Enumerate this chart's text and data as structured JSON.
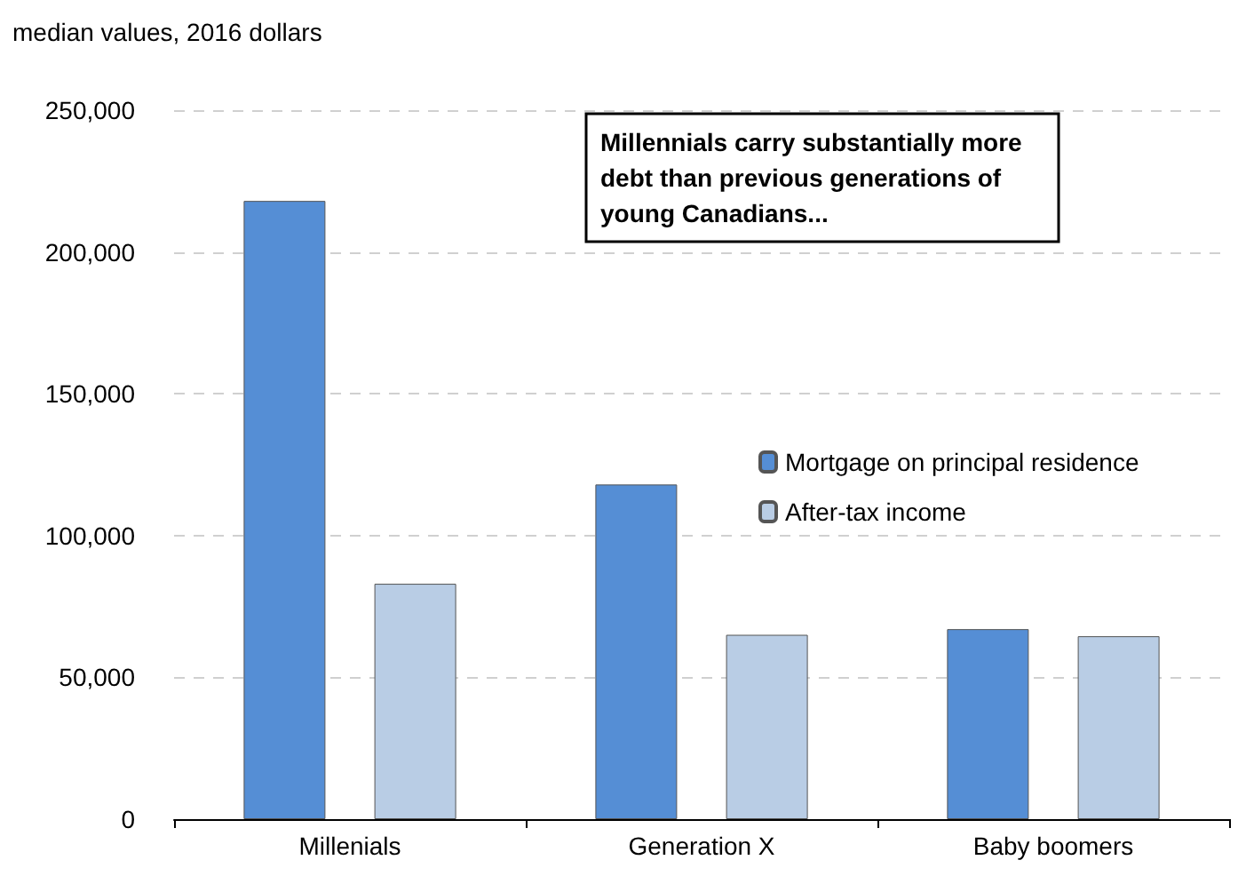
{
  "chart_data": {
    "type": "bar",
    "ylabel": "median values, 2016 dollars",
    "categories": [
      "Millenials",
      "Generation X",
      "Baby boomers"
    ],
    "series": [
      {
        "name": "Mortgage on principal residence",
        "color": "#558ed5",
        "values": [
          218000,
          118000,
          67000
        ]
      },
      {
        "name": "After-tax income",
        "color": "#b9cde5",
        "values": [
          83000,
          65000,
          64500
        ]
      }
    ],
    "ylim": [
      0,
      250000
    ],
    "yticks": [
      0,
      {
        "value": 50000,
        "label": "50,000"
      },
      {
        "value": 100000,
        "label": "100,000"
      },
      {
        "value": 150000,
        "label": "150,000"
      },
      {
        "value": 200000,
        "label": "200,000"
      },
      {
        "value": 250000,
        "label": "250,000"
      }
    ],
    "grid": "y",
    "legend": "right",
    "annotations": [
      "Millennials carry substantially more debt than previous generations of young Canadians..."
    ]
  }
}
